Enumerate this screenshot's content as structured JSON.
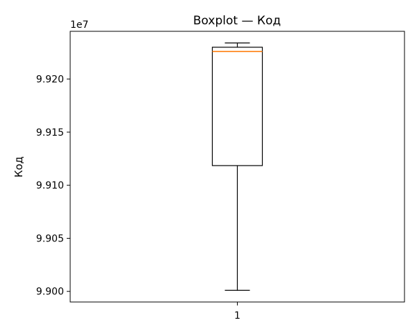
{
  "chart_data": {
    "type": "boxplot",
    "title": "Boxplot — Код",
    "xlabel": "",
    "ylabel": "Код",
    "offset_label": "1e7",
    "y_scale_factor": 10000000,
    "ylim": [
      98990000,
      99245000
    ],
    "yticks": [
      99000000,
      99050000,
      99100000,
      99150000,
      99200000
    ],
    "ytick_labels": [
      "9.900",
      "9.905",
      "9.910",
      "9.915",
      "9.920"
    ],
    "categories": [
      "1"
    ],
    "boxes": [
      {
        "category": "1",
        "whisker_low": 99001000,
        "q1": 99118500,
        "median": 99226000,
        "q3": 99230000,
        "whisker_high": 99234000
      }
    ],
    "grid": false,
    "colors": {
      "box": "#000000",
      "median": "#ff7f0e"
    }
  }
}
